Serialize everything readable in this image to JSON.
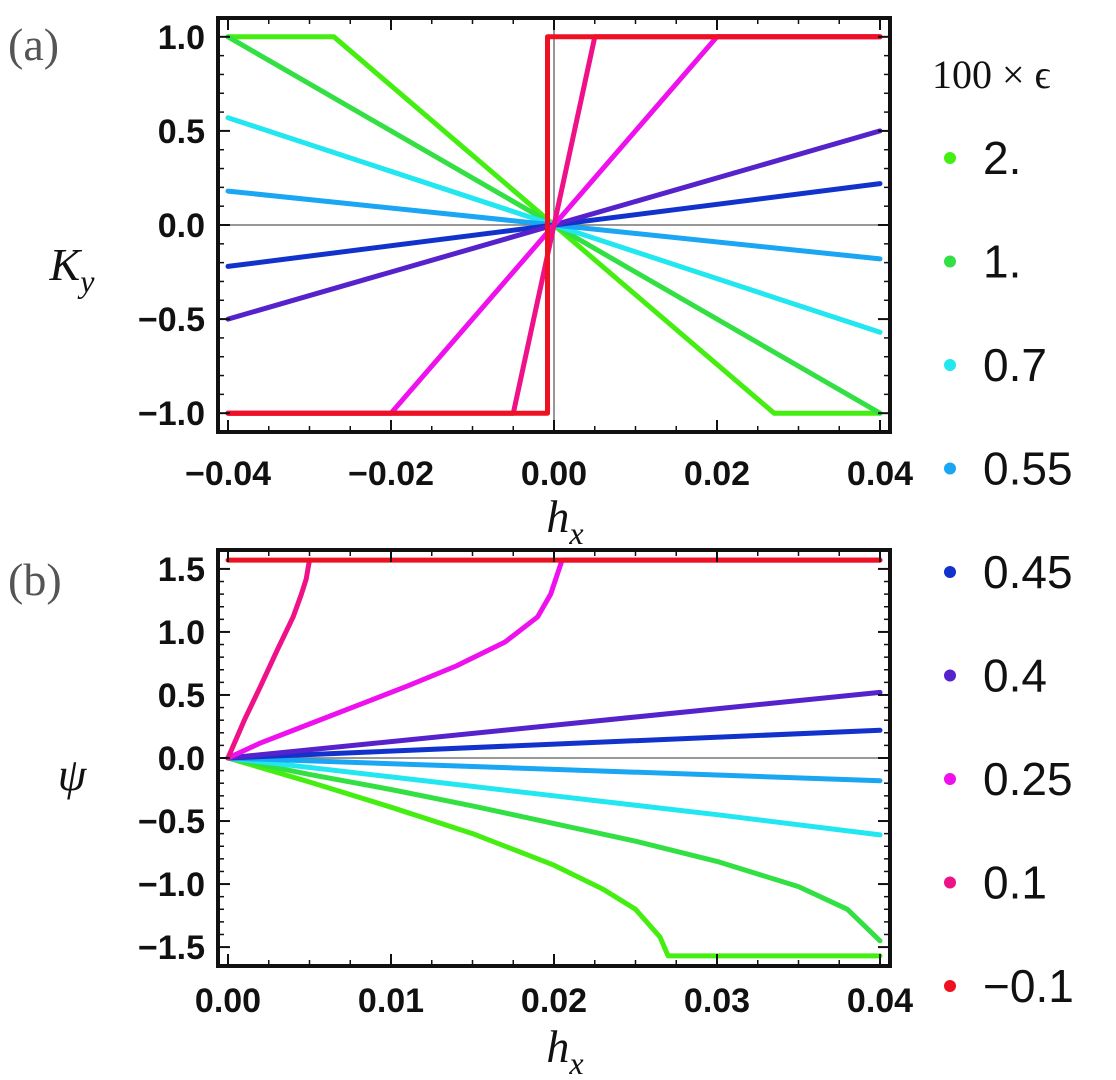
{
  "legend": {
    "title": "100 × ϵ",
    "entries": [
      {
        "label": "2.",
        "color": "#44ee11"
      },
      {
        "label": "1.",
        "color": "#33e044"
      },
      {
        "label": "0.7",
        "color": "#22e6f0"
      },
      {
        "label": "0.55",
        "color": "#1aa6f2"
      },
      {
        "label": "0.45",
        "color": "#1133cc"
      },
      {
        "label": "0.4",
        "color": "#5522cc"
      },
      {
        "label": "0.25",
        "color": "#ee11ee"
      },
      {
        "label": "0.1",
        "color": "#ee1188"
      },
      {
        "label": "−0.1",
        "color": "#ee1122"
      }
    ]
  },
  "chart_data": [
    {
      "type": "line",
      "panel_label": "(a)",
      "xlabel_main": "h",
      "xlabel_sub": "x",
      "ylabel_main": "K",
      "ylabel_sub": "y",
      "xlim": [
        -0.04,
        0.04
      ],
      "ylim": [
        -1.1,
        1.1
      ],
      "xticks": [
        -0.04,
        -0.02,
        0.0,
        0.02,
        0.04
      ],
      "xtick_labels": [
        "−0.04",
        "−0.02",
        "0.00",
        "0.02",
        "0.04"
      ],
      "yticks": [
        -1.0,
        -0.5,
        0.0,
        0.5,
        1.0
      ],
      "ytick_labels": [
        "−1.0",
        "−0.5",
        "0.0",
        "0.5",
        "1.0"
      ],
      "series": [
        {
          "name": "2.",
          "color": "#44ee11",
          "x": [
            -0.04,
            -0.027,
            0.027,
            0.04
          ],
          "y": [
            1.0,
            1.0,
            -1.0,
            -1.0
          ]
        },
        {
          "name": "1.",
          "color": "#33e044",
          "x": [
            -0.04,
            0.04
          ],
          "y": [
            1.0,
            -1.0
          ]
        },
        {
          "name": "0.7",
          "color": "#22e6f0",
          "x": [
            -0.04,
            0.04
          ],
          "y": [
            0.57,
            -0.57
          ]
        },
        {
          "name": "0.55",
          "color": "#1aa6f2",
          "x": [
            -0.04,
            0.04
          ],
          "y": [
            0.18,
            -0.18
          ]
        },
        {
          "name": "0.45",
          "color": "#1133cc",
          "x": [
            -0.04,
            0.04
          ],
          "y": [
            -0.22,
            0.22
          ]
        },
        {
          "name": "0.4",
          "color": "#5522cc",
          "x": [
            -0.04,
            0.04
          ],
          "y": [
            -0.5,
            0.5
          ]
        },
        {
          "name": "0.25",
          "color": "#ee11ee",
          "x": [
            -0.04,
            -0.02,
            0.02,
            0.04
          ],
          "y": [
            -1.0,
            -1.0,
            1.0,
            1.0
          ]
        },
        {
          "name": "0.1",
          "color": "#ee1188",
          "x": [
            -0.04,
            -0.005,
            0.005,
            0.04
          ],
          "y": [
            -1.0,
            -1.0,
            1.0,
            1.0
          ]
        },
        {
          "name": "−0.1",
          "color": "#ee1122",
          "x": [
            -0.04,
            -0.0008,
            -0.0008,
            0.04
          ],
          "y": [
            -1.0,
            -1.0,
            1.0,
            1.0
          ]
        }
      ]
    },
    {
      "type": "line",
      "panel_label": "(b)",
      "xlabel_main": "h",
      "xlabel_sub": "x",
      "ylabel_main": "ψ",
      "ylabel_sub": "",
      "xlim": [
        0.0,
        0.04
      ],
      "ylim": [
        -1.65,
        1.65
      ],
      "xticks": [
        0.0,
        0.01,
        0.02,
        0.03,
        0.04
      ],
      "xtick_labels": [
        "0.00",
        "0.01",
        "0.02",
        "0.03",
        "0.04"
      ],
      "yticks": [
        -1.5,
        -1.0,
        -0.5,
        0.0,
        0.5,
        1.0,
        1.5
      ],
      "ytick_labels": [
        "−1.5",
        "−1.0",
        "−0.5",
        "0.0",
        "0.5",
        "1.0",
        "1.5"
      ],
      "series": [
        {
          "name": "2.",
          "color": "#44ee11",
          "x": [
            0,
            0.005,
            0.01,
            0.015,
            0.02,
            0.023,
            0.025,
            0.0265,
            0.027,
            0.04
          ],
          "y": [
            0,
            -0.19,
            -0.39,
            -0.6,
            -0.85,
            -1.04,
            -1.2,
            -1.42,
            -1.57,
            -1.57
          ]
        },
        {
          "name": "1.",
          "color": "#33e044",
          "x": [
            0,
            0.005,
            0.01,
            0.015,
            0.02,
            0.025,
            0.03,
            0.035,
            0.038,
            0.04
          ],
          "y": [
            0,
            -0.13,
            -0.25,
            -0.38,
            -0.52,
            -0.66,
            -0.82,
            -1.02,
            -1.2,
            -1.45
          ]
        },
        {
          "name": "0.7",
          "color": "#22e6f0",
          "x": [
            0,
            0.01,
            0.02,
            0.03,
            0.04
          ],
          "y": [
            0,
            -0.15,
            -0.3,
            -0.45,
            -0.61
          ]
        },
        {
          "name": "0.55",
          "color": "#1aa6f2",
          "x": [
            0,
            0.04
          ],
          "y": [
            0,
            -0.18
          ]
        },
        {
          "name": "0.45",
          "color": "#1133cc",
          "x": [
            0,
            0.04
          ],
          "y": [
            0,
            0.22
          ]
        },
        {
          "name": "0.4",
          "color": "#5522cc",
          "x": [
            0,
            0.04
          ],
          "y": [
            0,
            0.52
          ]
        },
        {
          "name": "0.25",
          "color": "#ee11ee",
          "x": [
            0,
            0.002,
            0.005,
            0.008,
            0.011,
            0.014,
            0.017,
            0.019,
            0.0198,
            0.0205,
            0.04
          ],
          "y": [
            0,
            0.12,
            0.27,
            0.42,
            0.57,
            0.73,
            0.92,
            1.12,
            1.3,
            1.57,
            1.57
          ]
        },
        {
          "name": "0.1",
          "color": "#ee1188",
          "x": [
            0,
            0.001,
            0.002,
            0.003,
            0.004,
            0.0045,
            0.0048,
            0.005
          ],
          "y": [
            0,
            0.3,
            0.57,
            0.85,
            1.12,
            1.3,
            1.42,
            1.57
          ]
        },
        {
          "name": "−0.1",
          "color": "#ee1122",
          "x": [
            0,
            0.04
          ],
          "y": [
            1.57,
            1.57
          ]
        }
      ]
    }
  ]
}
